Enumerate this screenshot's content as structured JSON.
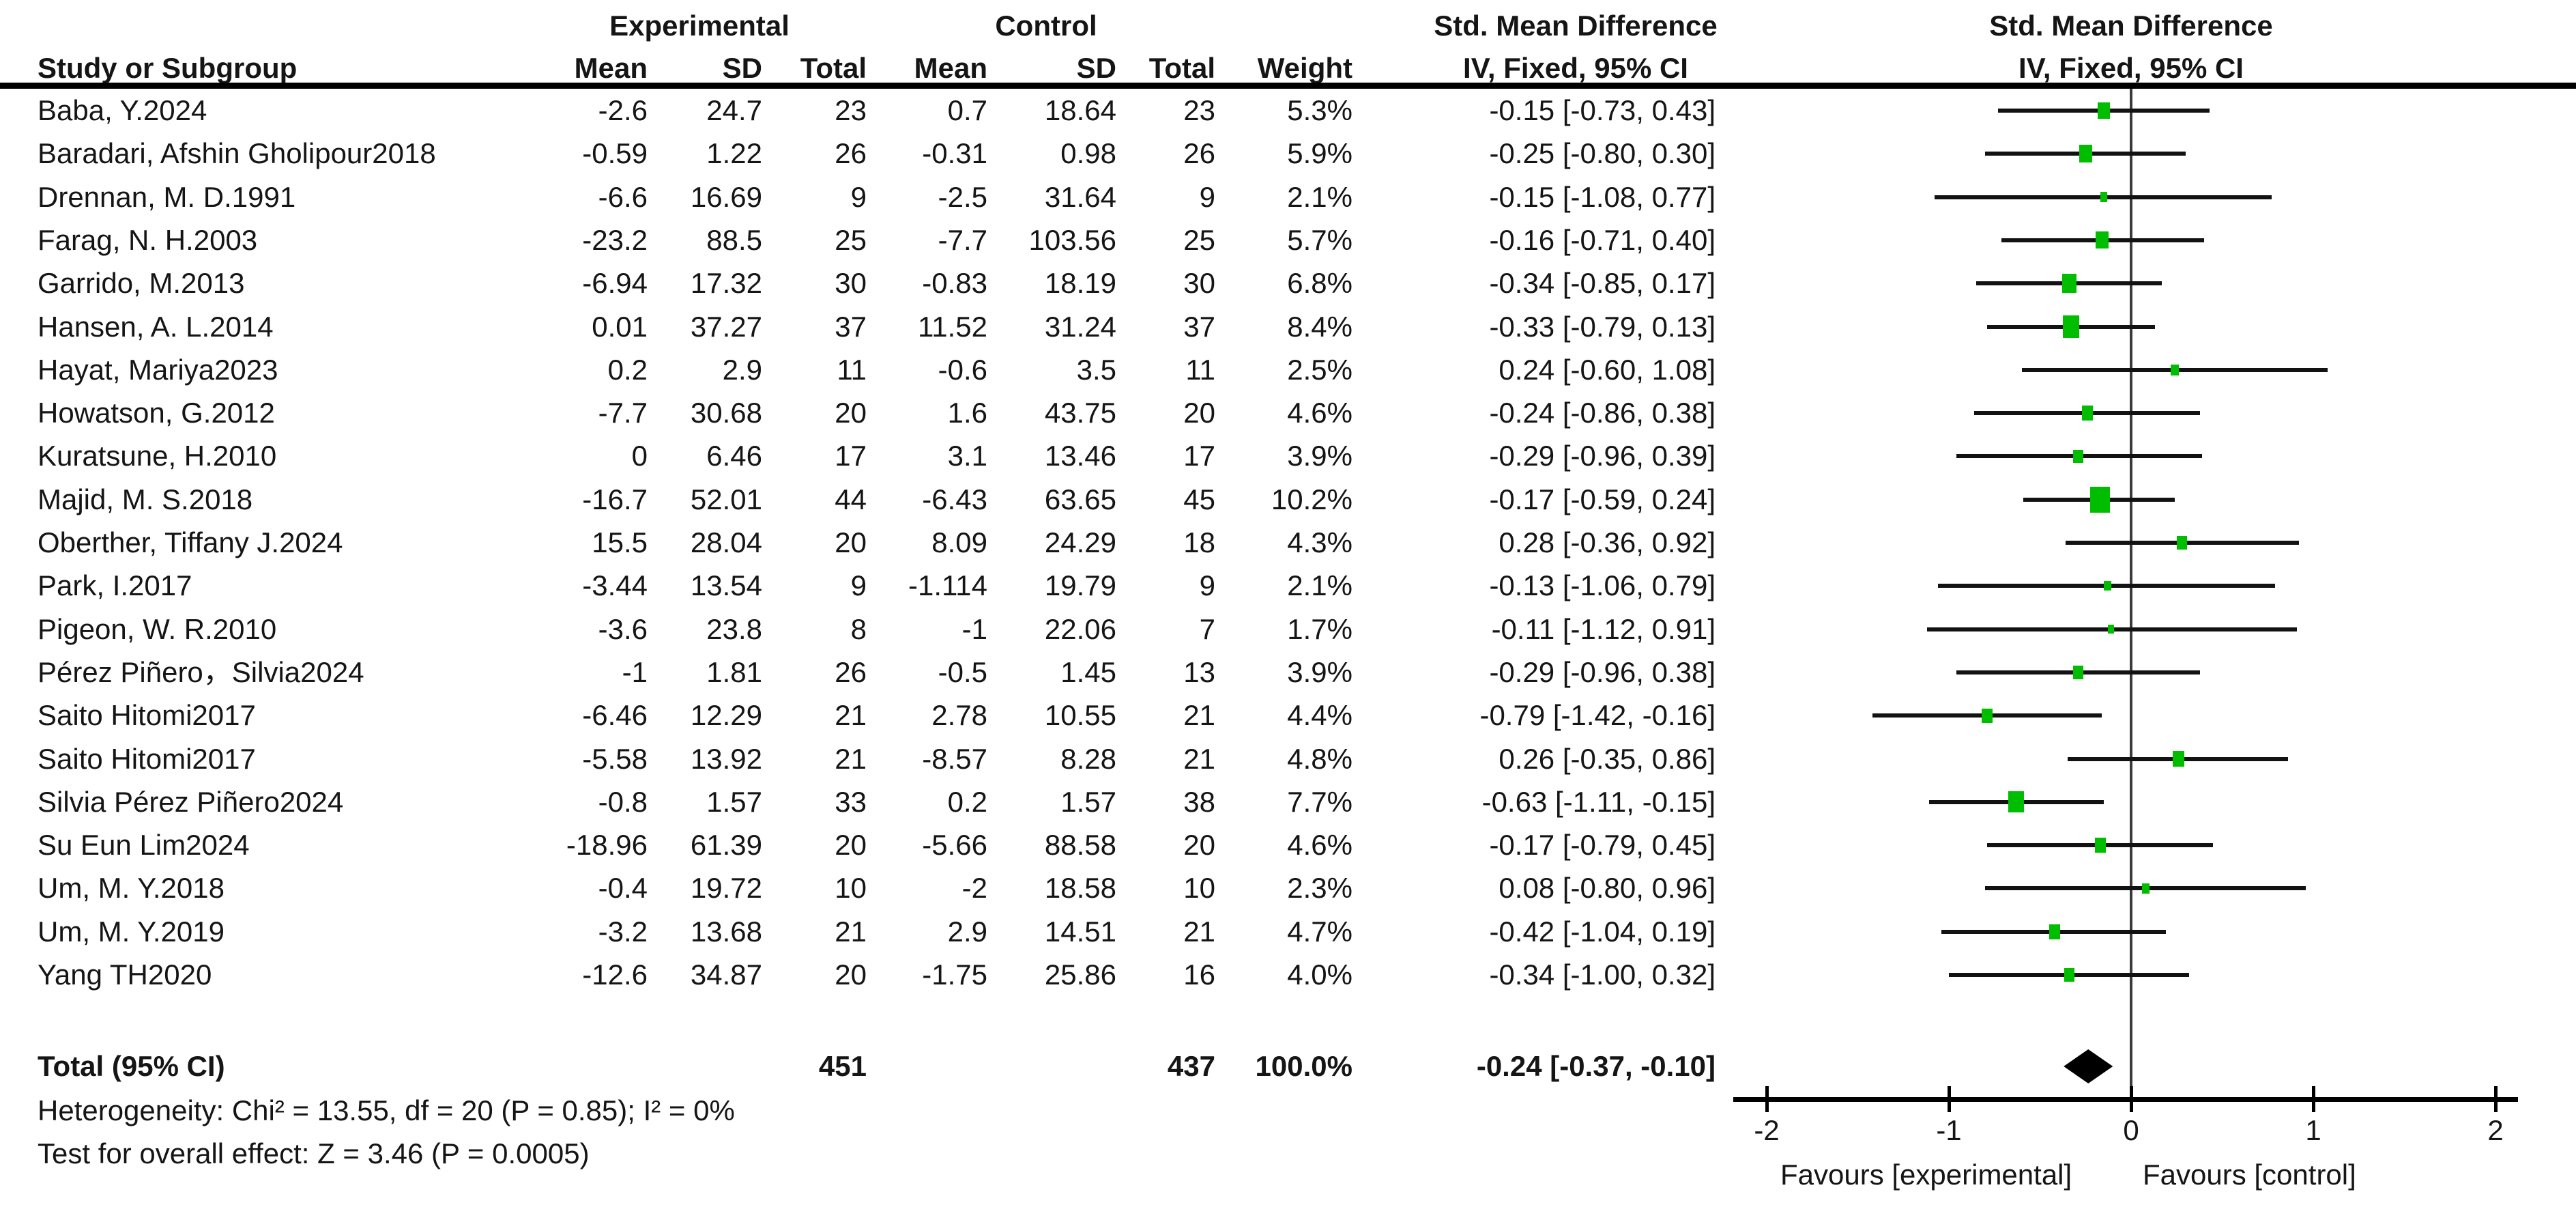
{
  "chart_data": {
    "type": "forest",
    "effect_measure": "Std. Mean Difference",
    "model": "IV, Fixed, 95% CI",
    "headers": {
      "group1": "Experimental",
      "group2": "Control",
      "smd_text_col": "Std. Mean Difference",
      "smd_plot_col": "Std. Mean Difference",
      "study": "Study or Subgroup",
      "mean1": "Mean",
      "sd1": "SD",
      "total1": "Total",
      "mean2": "Mean",
      "sd2": "SD",
      "total2": "Total",
      "weight": "Weight",
      "iv_text_col": "IV, Fixed, 95% CI",
      "iv_plot_col": "IV, Fixed, 95% CI"
    },
    "studies": [
      {
        "name": "Baba, Y.2024",
        "mean1": "-2.6",
        "sd1": "24.7",
        "n1": "23",
        "mean2": "0.7",
        "sd2": "18.64",
        "n2": "23",
        "weight": "5.3%",
        "ci_text": "-0.15 [-0.73, 0.43]",
        "est": -0.15,
        "lo": -0.73,
        "hi": 0.43,
        "weight_pct": 5.3
      },
      {
        "name": "Baradari, Afshin Gholipour2018",
        "mean1": "-0.59",
        "sd1": "1.22",
        "n1": "26",
        "mean2": "-0.31",
        "sd2": "0.98",
        "n2": "26",
        "weight": "5.9%",
        "ci_text": "-0.25 [-0.80, 0.30]",
        "est": -0.25,
        "lo": -0.8,
        "hi": 0.3,
        "weight_pct": 5.9
      },
      {
        "name": "Drennan, M. D.1991",
        "mean1": "-6.6",
        "sd1": "16.69",
        "n1": "9",
        "mean2": "-2.5",
        "sd2": "31.64",
        "n2": "9",
        "weight": "2.1%",
        "ci_text": "-0.15 [-1.08, 0.77]",
        "est": -0.15,
        "lo": -1.08,
        "hi": 0.77,
        "weight_pct": 2.1
      },
      {
        "name": "Farag, N. H.2003",
        "mean1": "-23.2",
        "sd1": "88.5",
        "n1": "25",
        "mean2": "-7.7",
        "sd2": "103.56",
        "n2": "25",
        "weight": "5.7%",
        "ci_text": "-0.16 [-0.71, 0.40]",
        "est": -0.16,
        "lo": -0.71,
        "hi": 0.4,
        "weight_pct": 5.7
      },
      {
        "name": "Garrido, M.2013",
        "mean1": "-6.94",
        "sd1": "17.32",
        "n1": "30",
        "mean2": "-0.83",
        "sd2": "18.19",
        "n2": "30",
        "weight": "6.8%",
        "ci_text": "-0.34 [-0.85, 0.17]",
        "est": -0.34,
        "lo": -0.85,
        "hi": 0.17,
        "weight_pct": 6.8
      },
      {
        "name": "Hansen, A. L.2014",
        "mean1": "0.01",
        "sd1": "37.27",
        "n1": "37",
        "mean2": "11.52",
        "sd2": "31.24",
        "n2": "37",
        "weight": "8.4%",
        "ci_text": "-0.33 [-0.79, 0.13]",
        "est": -0.33,
        "lo": -0.79,
        "hi": 0.13,
        "weight_pct": 8.4
      },
      {
        "name": "Hayat, Mariya2023",
        "mean1": "0.2",
        "sd1": "2.9",
        "n1": "11",
        "mean2": "-0.6",
        "sd2": "3.5",
        "n2": "11",
        "weight": "2.5%",
        "ci_text": "0.24 [-0.60, 1.08]",
        "est": 0.24,
        "lo": -0.6,
        "hi": 1.08,
        "weight_pct": 2.5
      },
      {
        "name": "Howatson, G.2012",
        "mean1": "-7.7",
        "sd1": "30.68",
        "n1": "20",
        "mean2": "1.6",
        "sd2": "43.75",
        "n2": "20",
        "weight": "4.6%",
        "ci_text": "-0.24 [-0.86, 0.38]",
        "est": -0.24,
        "lo": -0.86,
        "hi": 0.38,
        "weight_pct": 4.6
      },
      {
        "name": "Kuratsune, H.2010",
        "mean1": "0",
        "sd1": "6.46",
        "n1": "17",
        "mean2": "3.1",
        "sd2": "13.46",
        "n2": "17",
        "weight": "3.9%",
        "ci_text": "-0.29 [-0.96, 0.39]",
        "est": -0.29,
        "lo": -0.96,
        "hi": 0.39,
        "weight_pct": 3.9
      },
      {
        "name": "Majid, M. S.2018",
        "mean1": "-16.7",
        "sd1": "52.01",
        "n1": "44",
        "mean2": "-6.43",
        "sd2": "63.65",
        "n2": "45",
        "weight": "10.2%",
        "ci_text": "-0.17 [-0.59, 0.24]",
        "est": -0.17,
        "lo": -0.59,
        "hi": 0.24,
        "weight_pct": 10.2
      },
      {
        "name": "Oberther, Tiffany J.2024",
        "mean1": "15.5",
        "sd1": "28.04",
        "n1": "20",
        "mean2": "8.09",
        "sd2": "24.29",
        "n2": "18",
        "weight": "4.3%",
        "ci_text": "0.28 [-0.36, 0.92]",
        "est": 0.28,
        "lo": -0.36,
        "hi": 0.92,
        "weight_pct": 4.3
      },
      {
        "name": "Park, I.2017",
        "mean1": "-3.44",
        "sd1": "13.54",
        "n1": "9",
        "mean2": "-1.114",
        "sd2": "19.79",
        "n2": "9",
        "weight": "2.1%",
        "ci_text": "-0.13 [-1.06, 0.79]",
        "est": -0.13,
        "lo": -1.06,
        "hi": 0.79,
        "weight_pct": 2.1
      },
      {
        "name": "Pigeon, W. R.2010",
        "mean1": "-3.6",
        "sd1": "23.8",
        "n1": "8",
        "mean2": "-1",
        "sd2": "22.06",
        "n2": "7",
        "weight": "1.7%",
        "ci_text": "-0.11 [-1.12, 0.91]",
        "est": -0.11,
        "lo": -1.12,
        "hi": 0.91,
        "weight_pct": 1.7
      },
      {
        "name": "Pérez Piñero，Silvia2024",
        "mean1": "-1",
        "sd1": "1.81",
        "n1": "26",
        "mean2": "-0.5",
        "sd2": "1.45",
        "n2": "13",
        "weight": "3.9%",
        "ci_text": "-0.29 [-0.96, 0.38]",
        "est": -0.29,
        "lo": -0.96,
        "hi": 0.38,
        "weight_pct": 3.9
      },
      {
        "name": "Saito Hitomi2017",
        "mean1": "-6.46",
        "sd1": "12.29",
        "n1": "21",
        "mean2": "2.78",
        "sd2": "10.55",
        "n2": "21",
        "weight": "4.4%",
        "ci_text": "-0.79 [-1.42, -0.16]",
        "est": -0.79,
        "lo": -1.42,
        "hi": -0.16,
        "weight_pct": 4.4
      },
      {
        "name": "Saito Hitomi2017",
        "mean1": "-5.58",
        "sd1": "13.92",
        "n1": "21",
        "mean2": "-8.57",
        "sd2": "8.28",
        "n2": "21",
        "weight": "4.8%",
        "ci_text": "0.26 [-0.35, 0.86]",
        "est": 0.26,
        "lo": -0.35,
        "hi": 0.86,
        "weight_pct": 4.8
      },
      {
        "name": "Silvia Pérez Piñero2024",
        "mean1": "-0.8",
        "sd1": "1.57",
        "n1": "33",
        "mean2": "0.2",
        "sd2": "1.57",
        "n2": "38",
        "weight": "7.7%",
        "ci_text": "-0.63 [-1.11, -0.15]",
        "est": -0.63,
        "lo": -1.11,
        "hi": -0.15,
        "weight_pct": 7.7
      },
      {
        "name": "Su Eun Lim2024",
        "mean1": "-18.96",
        "sd1": "61.39",
        "n1": "20",
        "mean2": "-5.66",
        "sd2": "88.58",
        "n2": "20",
        "weight": "4.6%",
        "ci_text": "-0.17 [-0.79, 0.45]",
        "est": -0.17,
        "lo": -0.79,
        "hi": 0.45,
        "weight_pct": 4.6
      },
      {
        "name": "Um, M. Y.2018",
        "mean1": "-0.4",
        "sd1": "19.72",
        "n1": "10",
        "mean2": "-2",
        "sd2": "18.58",
        "n2": "10",
        "weight": "2.3%",
        "ci_text": "0.08 [-0.80, 0.96]",
        "est": 0.08,
        "lo": -0.8,
        "hi": 0.96,
        "weight_pct": 2.3
      },
      {
        "name": "Um, M. Y.2019",
        "mean1": "-3.2",
        "sd1": "13.68",
        "n1": "21",
        "mean2": "2.9",
        "sd2": "14.51",
        "n2": "21",
        "weight": "4.7%",
        "ci_text": "-0.42 [-1.04, 0.19]",
        "est": -0.42,
        "lo": -1.04,
        "hi": 0.19,
        "weight_pct": 4.7
      },
      {
        "name": "Yang TH2020",
        "mean1": "-12.6",
        "sd1": "34.87",
        "n1": "20",
        "mean2": "-1.75",
        "sd2": "25.86",
        "n2": "16",
        "weight": "4.0%",
        "ci_text": "-0.34 [-1.00, 0.32]",
        "est": -0.34,
        "lo": -1.0,
        "hi": 0.32,
        "weight_pct": 4.0
      }
    ],
    "total": {
      "label": "Total (95% CI)",
      "n1": "451",
      "n2": "437",
      "weight": "100.0%",
      "ci_text": "-0.24 [-0.37, -0.10]",
      "est": -0.24,
      "lo": -0.37,
      "hi": -0.1
    },
    "heterogeneity": "Heterogeneity: Chi² = 13.55, df = 20 (P = 0.85); I² = 0%",
    "overall_effect": "Test for overall effect: Z = 3.46 (P = 0.0005)",
    "axis": {
      "ticks": [
        "-2",
        "-1",
        "0",
        "1",
        "2"
      ],
      "tick_values": [
        -2,
        -1,
        0,
        1,
        2
      ],
      "xlim": [
        -2.2,
        2.2
      ],
      "favours_left": "Favours [experimental]",
      "favours_right": "Favours [control]"
    },
    "colors": {
      "marker_green": "#00bd00",
      "line_black": "#121212",
      "diamond_black": "#000000"
    }
  }
}
